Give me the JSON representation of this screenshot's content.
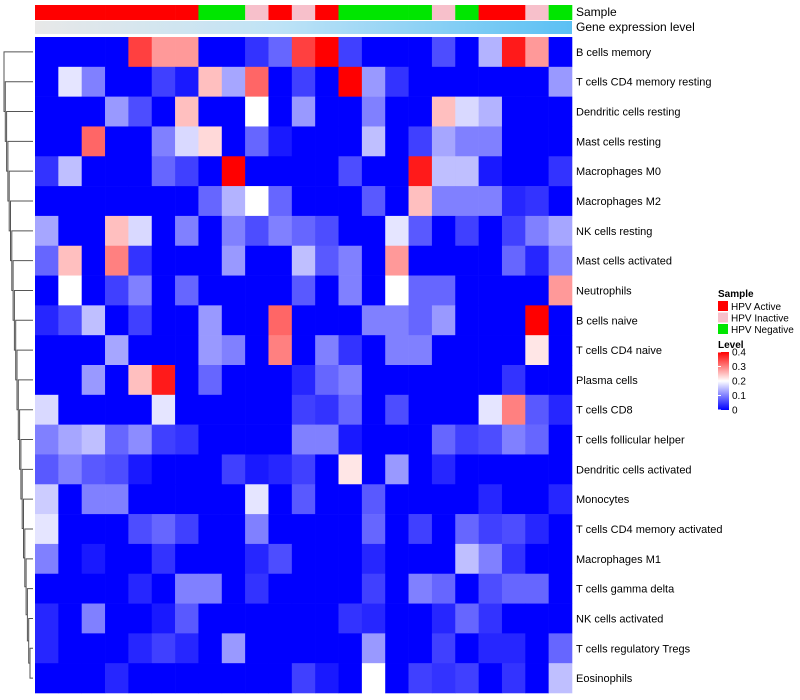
{
  "chart_data": {
    "type": "heatmap",
    "title": "",
    "annotation_labels": [
      "Sample",
      "Gene expression level"
    ],
    "rows": [
      "B cells memory",
      "T cells CD4 memory resting",
      "Dendritic cells resting",
      "Mast cells resting",
      "Macrophages M0",
      "Macrophages M2",
      "NK cells resting",
      "Mast cells activated",
      "Neutrophils",
      "B cells naive",
      "T cells CD4 naive",
      "Plasma cells",
      "T cells CD8",
      "T cells follicular helper",
      "Dendritic cells activated",
      "Monocytes",
      "T cells CD4 memory activated",
      "Macrophages M1",
      "T cells gamma delta",
      "NK cells activated",
      "T cells regulatory  Tregs",
      "Eosinophils"
    ],
    "sample_annotation": [
      "Active",
      "Active",
      "Active",
      "Active",
      "Active",
      "Active",
      "Active",
      "Negative",
      "Negative",
      "Inactive",
      "Active",
      "Inactive",
      "Active",
      "Negative",
      "Negative",
      "Negative",
      "Negative",
      "Inactive",
      "Negative",
      "Active",
      "Active",
      "Inactive",
      "Negative"
    ],
    "values": [
      [
        0.0,
        0.0,
        0.0,
        0.0,
        0.35,
        0.28,
        0.28,
        0.0,
        0.0,
        0.04,
        0.08,
        0.35,
        0.4,
        0.05,
        0.0,
        0.0,
        0.0,
        0.06,
        0.0,
        0.14,
        0.38,
        0.28,
        0.0
      ],
      [
        0.0,
        0.18,
        0.1,
        0.0,
        0.0,
        0.05,
        0.02,
        0.25,
        0.13,
        0.32,
        0.0,
        0.05,
        0.0,
        0.4,
        0.12,
        0.04,
        0.0,
        0.0,
        0.0,
        0.0,
        0.0,
        0.0,
        0.12
      ],
      [
        0.0,
        0.0,
        0.0,
        0.12,
        0.06,
        0.0,
        0.25,
        0.0,
        0.0,
        0.2,
        0.0,
        0.12,
        0.0,
        0.0,
        0.1,
        0.0,
        0.0,
        0.25,
        0.17,
        0.14,
        0.0,
        0.0,
        0.0
      ],
      [
        0.0,
        0.0,
        0.32,
        0.0,
        0.0,
        0.1,
        0.17,
        0.23,
        0.0,
        0.08,
        0.02,
        0.0,
        0.0,
        0.0,
        0.15,
        0.0,
        0.05,
        0.13,
        0.1,
        0.1,
        0.0,
        0.0,
        0.0
      ],
      [
        0.04,
        0.15,
        0.0,
        0.0,
        0.0,
        0.08,
        0.05,
        0.0,
        0.4,
        0.0,
        0.0,
        0.0,
        0.0,
        0.06,
        0.0,
        0.0,
        0.38,
        0.15,
        0.15,
        0.02,
        0.0,
        0.0,
        0.04
      ],
      [
        0.0,
        0.0,
        0.0,
        0.0,
        0.0,
        0.0,
        0.0,
        0.08,
        0.14,
        0.2,
        0.08,
        0.0,
        0.0,
        0.0,
        0.07,
        0.0,
        0.25,
        0.1,
        0.1,
        0.1,
        0.03,
        0.04,
        0.0
      ],
      [
        0.13,
        0.0,
        0.0,
        0.25,
        0.17,
        0.0,
        0.1,
        0.0,
        0.1,
        0.06,
        0.1,
        0.08,
        0.06,
        0.0,
        0.0,
        0.18,
        0.07,
        0.0,
        0.05,
        0.0,
        0.05,
        0.1,
        0.13
      ],
      [
        0.08,
        0.25,
        0.0,
        0.3,
        0.04,
        0.0,
        0.0,
        0.0,
        0.12,
        0.0,
        0.0,
        0.15,
        0.07,
        0.1,
        0.0,
        0.28,
        0.0,
        0.0,
        0.0,
        0.0,
        0.08,
        0.03,
        0.1
      ],
      [
        0.0,
        0.2,
        0.0,
        0.05,
        0.1,
        0.0,
        0.08,
        0.0,
        0.0,
        0.0,
        0.0,
        0.07,
        0.0,
        0.1,
        0.0,
        0.2,
        0.08,
        0.08,
        0.0,
        0.0,
        0.0,
        0.0,
        0.28
      ],
      [
        0.03,
        0.06,
        0.15,
        0.0,
        0.05,
        0.0,
        0.0,
        0.12,
        0.0,
        0.0,
        0.32,
        0.0,
        0.0,
        0.0,
        0.1,
        0.1,
        0.08,
        0.12,
        0.0,
        0.0,
        0.0,
        0.4,
        0.0
      ],
      [
        0.0,
        0.0,
        0.0,
        0.13,
        0.0,
        0.0,
        0.0,
        0.12,
        0.1,
        0.0,
        0.3,
        0.0,
        0.1,
        0.04,
        0.0,
        0.1,
        0.1,
        0.0,
        0.0,
        0.0,
        0.0,
        0.22,
        0.0
      ],
      [
        0.0,
        0.0,
        0.12,
        0.0,
        0.25,
        0.38,
        0.0,
        0.08,
        0.0,
        0.0,
        0.0,
        0.03,
        0.08,
        0.1,
        0.0,
        0.0,
        0.0,
        0.0,
        0.0,
        0.0,
        0.04,
        0.0,
        0.0
      ],
      [
        0.17,
        0.0,
        0.0,
        0.0,
        0.0,
        0.18,
        0.0,
        0.0,
        0.0,
        0.0,
        0.0,
        0.05,
        0.04,
        0.08,
        0.0,
        0.06,
        0.0,
        0.0,
        0.0,
        0.18,
        0.3,
        0.07,
        0.03
      ],
      [
        0.1,
        0.13,
        0.15,
        0.08,
        0.11,
        0.05,
        0.04,
        0.0,
        0.0,
        0.0,
        0.0,
        0.1,
        0.1,
        0.02,
        0.0,
        0.0,
        0.0,
        0.08,
        0.05,
        0.06,
        0.1,
        0.08,
        0.0
      ],
      [
        0.07,
        0.1,
        0.07,
        0.06,
        0.02,
        0.0,
        0.0,
        0.0,
        0.05,
        0.02,
        0.03,
        0.05,
        0.0,
        0.22,
        0.0,
        0.12,
        0.0,
        0.03,
        0.0,
        0.0,
        0.0,
        0.0,
        0.0
      ],
      [
        0.16,
        0.0,
        0.1,
        0.1,
        0.0,
        0.0,
        0.0,
        0.0,
        0.0,
        0.18,
        0.0,
        0.07,
        0.0,
        0.0,
        0.07,
        0.0,
        0.0,
        0.0,
        0.0,
        0.03,
        0.0,
        0.0,
        0.03
      ],
      [
        0.18,
        0.0,
        0.0,
        0.0,
        0.06,
        0.08,
        0.05,
        0.0,
        0.0,
        0.1,
        0.0,
        0.0,
        0.0,
        0.0,
        0.08,
        0.0,
        0.05,
        0.0,
        0.08,
        0.05,
        0.06,
        0.03,
        0.0
      ],
      [
        0.1,
        0.0,
        0.02,
        0.0,
        0.0,
        0.04,
        0.0,
        0.0,
        0.0,
        0.03,
        0.06,
        0.0,
        0.0,
        0.0,
        0.03,
        0.0,
        0.0,
        0.0,
        0.15,
        0.1,
        0.04,
        0.0,
        0.0
      ],
      [
        0.0,
        0.0,
        0.0,
        0.0,
        0.03,
        0.0,
        0.1,
        0.1,
        0.0,
        0.04,
        0.0,
        0.0,
        0.0,
        0.0,
        0.05,
        0.0,
        0.1,
        0.08,
        0.0,
        0.06,
        0.08,
        0.08,
        0.0
      ],
      [
        0.03,
        0.0,
        0.1,
        0.0,
        0.0,
        0.02,
        0.07,
        0.0,
        0.0,
        0.0,
        0.0,
        0.0,
        0.0,
        0.04,
        0.03,
        0.0,
        0.0,
        0.03,
        0.08,
        0.04,
        0.0,
        0.0,
        0.0
      ],
      [
        0.03,
        0.0,
        0.0,
        0.0,
        0.03,
        0.05,
        0.03,
        0.0,
        0.12,
        0.0,
        0.0,
        0.0,
        0.0,
        0.0,
        0.12,
        0.0,
        0.0,
        0.05,
        0.0,
        0.03,
        0.03,
        0.0,
        0.08
      ],
      [
        0.0,
        0.0,
        0.0,
        0.03,
        0.0,
        0.0,
        0.0,
        0.0,
        0.0,
        0.0,
        0.0,
        0.05,
        0.02,
        0.0,
        0.2,
        0.0,
        0.05,
        0.04,
        0.05,
        0.0,
        0.04,
        0.0,
        0.15
      ]
    ],
    "legend": {
      "sample_title": "Sample",
      "sample_entries": [
        {
          "key": "Active",
          "label": "HPV Active",
          "color": "#ff0000"
        },
        {
          "key": "Inactive",
          "label": "HPV Inactive",
          "color": "#f7c0cb"
        },
        {
          "key": "Negative",
          "label": "HPV Negative",
          "color": "#00e600"
        }
      ],
      "level_title": "Level",
      "level_ticks": [
        {
          "value": 0.4,
          "label": "0.4"
        },
        {
          "value": 0.3,
          "label": "0.3"
        },
        {
          "value": 0.2,
          "label": "0.2"
        },
        {
          "value": 0.1,
          "label": "0.1"
        },
        {
          "value": 0.0,
          "label": "0"
        }
      ],
      "level_range": [
        0,
        0.4
      ]
    },
    "colors": {
      "low": "#0000ff",
      "mid": "#ffffff",
      "high": "#ff0000",
      "gene_expression_bar": "#5bc0f4"
    },
    "dendrogram_parents": [
      [
        20,
        21
      ],
      [
        19,
        22
      ],
      [
        18,
        23
      ],
      [
        17,
        24
      ],
      [
        16,
        25
      ],
      [
        15,
        26
      ],
      [
        14,
        27
      ],
      [
        13,
        28
      ],
      [
        12,
        29
      ],
      [
        11,
        30
      ],
      [
        10,
        31
      ],
      [
        9,
        32
      ],
      [
        8,
        33
      ],
      [
        7,
        34
      ],
      [
        6,
        35
      ],
      [
        5,
        36
      ],
      [
        4,
        37
      ],
      [
        3,
        38
      ],
      [
        2,
        39
      ],
      [
        1,
        40
      ],
      [
        0,
        41
      ]
    ]
  }
}
